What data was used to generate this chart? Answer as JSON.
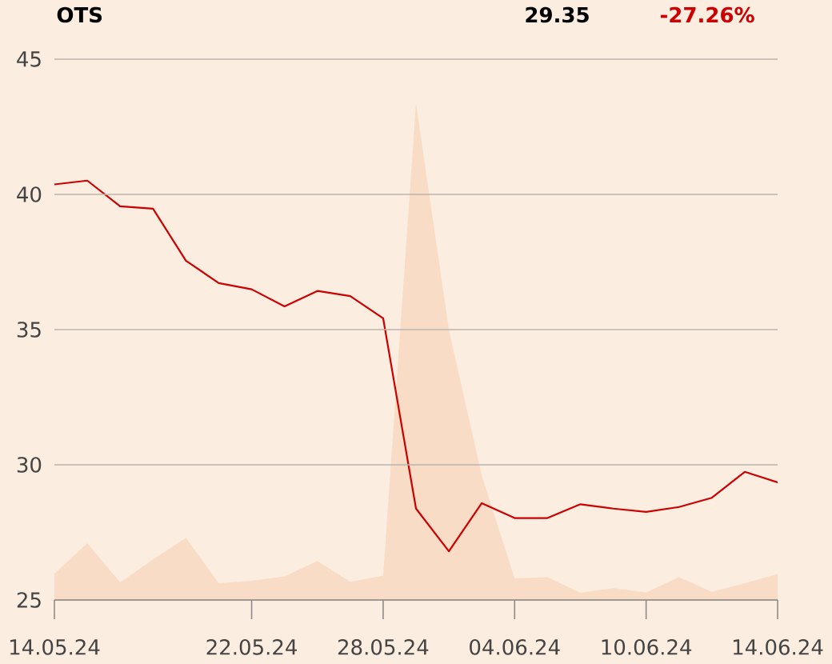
{
  "chart_data": {
    "type": "line",
    "title": "OTS",
    "annotations": [
      "29.35",
      "-27.26%"
    ],
    "categories": [
      "14.05.24",
      null,
      null,
      null,
      null,
      null,
      "22.05.24",
      null,
      null,
      null,
      "28.05.24",
      null,
      null,
      null,
      "04.06.24",
      null,
      null,
      null,
      "10.06.24",
      null,
      null,
      null,
      "14.06.24"
    ],
    "series": [
      {
        "type": "area",
        "color": "#f8dcc6",
        "values": [
          25.97,
          27.1,
          25.65,
          26.5,
          27.3,
          25.62,
          25.71,
          25.87,
          26.44,
          25.67,
          25.9,
          43.37,
          35.0,
          29.6,
          25.8,
          25.84,
          25.27,
          25.44,
          25.28,
          25.84,
          25.3,
          25.62,
          25.96
        ]
      },
      {
        "color": "#cc0000",
        "values": [
          40.37,
          40.51,
          39.56,
          39.47,
          37.55,
          36.72,
          36.49,
          35.86,
          36.43,
          36.24,
          35.42,
          28.38,
          26.8,
          28.58,
          28.03,
          28.03,
          28.54,
          28.38,
          28.26,
          28.44,
          28.78,
          29.74,
          29.35
        ]
      }
    ],
    "ylim": [
      25,
      45
    ],
    "yticks": [
      25,
      30,
      35,
      40,
      45
    ],
    "grid": "y"
  }
}
